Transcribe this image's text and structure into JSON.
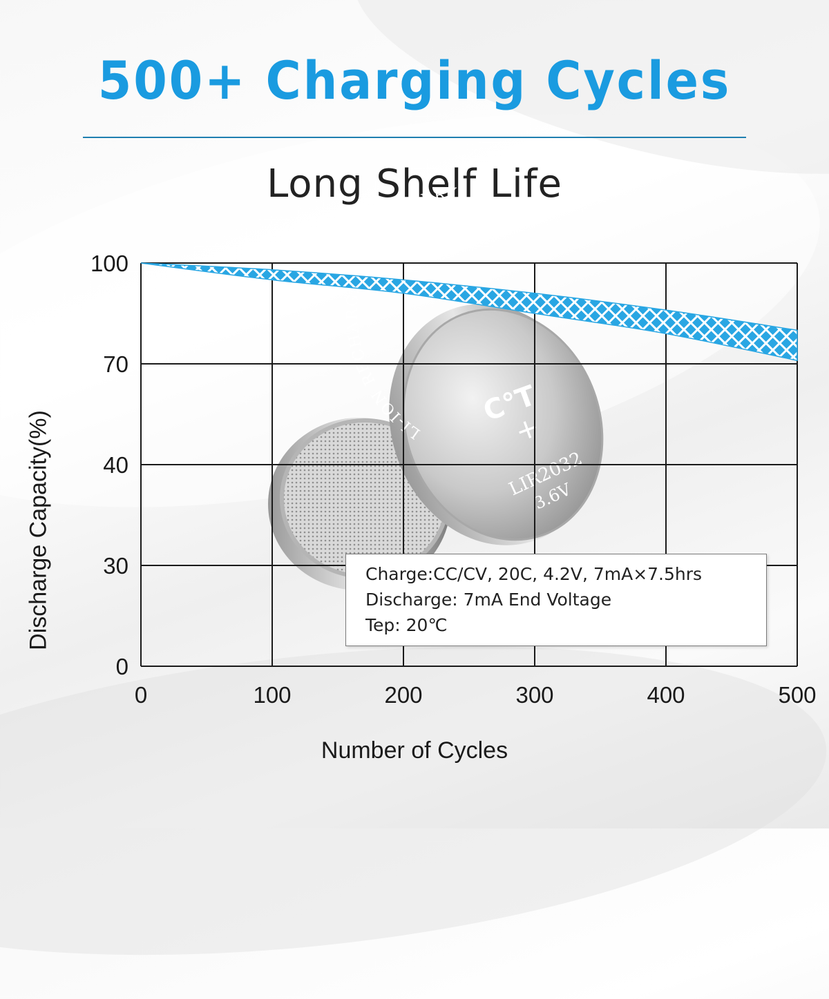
{
  "headline": "500+ Charging Cycles",
  "subheadline": "Long Shelf Life",
  "colors": {
    "accent": "#1a9be0",
    "band": "#29a6e3",
    "grid": "#1a1a1a"
  },
  "battery_photo": {
    "front_text": [
      "LI-ION RECHARGEABLE BATTERY",
      "LIR2032",
      "3.6V"
    ],
    "front_symbol": "+",
    "brand_mark": "C°T"
  },
  "spec_box": {
    "lines": [
      "Charge:CC/CV, 20C, 4.2V, 7mA×7.5hrs",
      "Discharge: 7mA End Voltage",
      "Tep: 20℃"
    ]
  },
  "chart_data": {
    "type": "area",
    "xlabel": "Number of Cycles",
    "ylabel": "Discharge Capacity(%)",
    "x_ticks": [
      0,
      100,
      200,
      300,
      400,
      500
    ],
    "y_ticks": [
      100,
      70,
      40,
      30,
      0
    ],
    "grid": true,
    "fill_pattern": "crosshatch",
    "series": [
      {
        "x": [
          0,
          100,
          200,
          300,
          400,
          500
        ],
        "upper": [
          100,
          98,
          95,
          91,
          86,
          80
        ],
        "lower": [
          100,
          95,
          91,
          85,
          79,
          71
        ]
      }
    ]
  }
}
